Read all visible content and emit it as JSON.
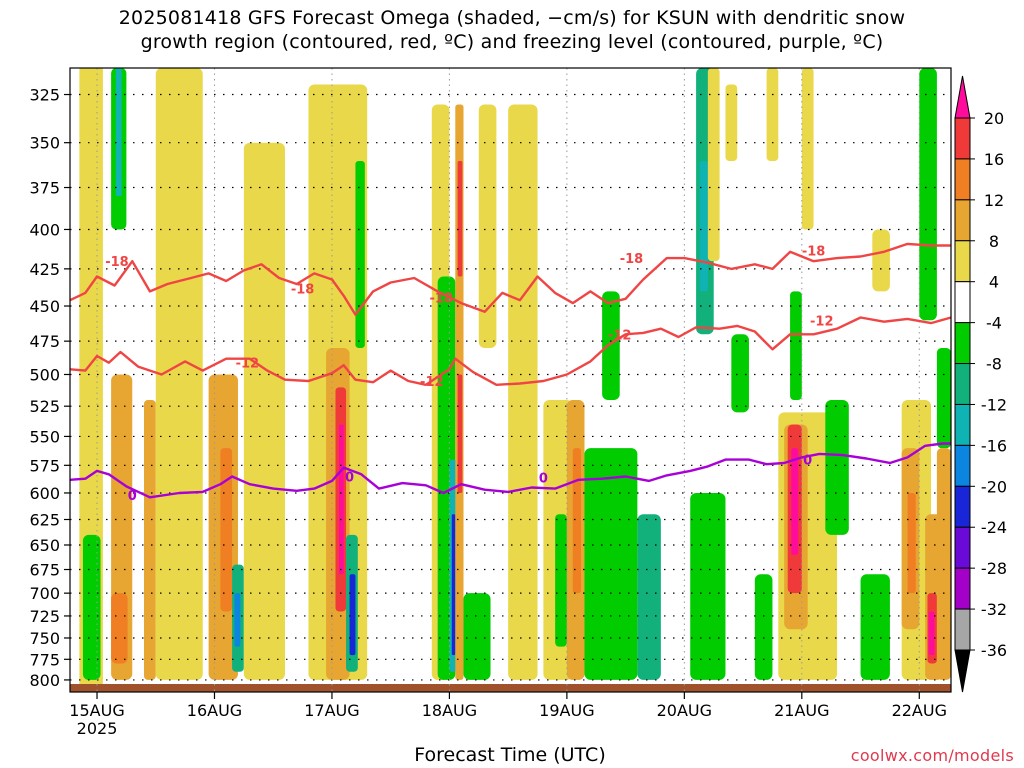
{
  "title_line1": "2025081418 GFS Forecast Omega (shaded, −cm/s) for KSUN with dendritic snow",
  "title_line2": "growth region (contoured, red, ºC) and freezing level (contoured, purple, ºC)",
  "xlabel": "Forecast Time (UTC)",
  "credit": "coolwx.com/models",
  "chart_data": {
    "type": "heatmap",
    "x_ticks": [
      {
        "label": "15AUG",
        "sub": "2025",
        "day": 0
      },
      {
        "label": "16AUG",
        "sub": "",
        "day": 1
      },
      {
        "label": "17AUG",
        "sub": "",
        "day": 2
      },
      {
        "label": "18AUG",
        "sub": "",
        "day": 3
      },
      {
        "label": "19AUG",
        "sub": "",
        "day": 4
      },
      {
        "label": "20AUG",
        "sub": "",
        "day": 5
      },
      {
        "label": "21AUG",
        "sub": "",
        "day": 6
      },
      {
        "label": "22AUG",
        "sub": "",
        "day": 7
      }
    ],
    "x_range_days": [
      -0.23,
      7.27
    ],
    "y_ticks": [
      325,
      350,
      375,
      400,
      425,
      450,
      475,
      500,
      525,
      550,
      575,
      600,
      625,
      650,
      675,
      700,
      725,
      750,
      775,
      800
    ],
    "y_range": [
      312,
      815
    ],
    "y_scale": "log",
    "grid": true,
    "colorbar": {
      "levels": [
        20,
        16,
        12,
        8,
        4,
        -4,
        -8,
        -12,
        -16,
        -20,
        -24,
        -28,
        -32,
        -36
      ],
      "colors": [
        "#ff0c9c",
        "#f03a3a",
        "#ef7f22",
        "#e6a631",
        "#e9d84a",
        "#ffffff",
        "#00cc00",
        "#12b07a",
        "#10b3b3",
        "#0b85e0",
        "#1826d8",
        "#6a0ad6",
        "#a300c8",
        "#a6a6a6",
        "#000000"
      ]
    },
    "contour_labels": {
      "dgz_red": [
        "-18",
        "-12"
      ],
      "freezing_purple": [
        "0"
      ]
    },
    "series": [
      {
        "name": "-18",
        "color": "#f04545",
        "points": [
          [
            -0.23,
            446
          ],
          [
            -0.1,
            441
          ],
          [
            0.0,
            430
          ],
          [
            0.15,
            436
          ],
          [
            0.3,
            420
          ],
          [
            0.45,
            440
          ],
          [
            0.6,
            435
          ],
          [
            0.8,
            431
          ],
          [
            0.95,
            428
          ],
          [
            1.1,
            433
          ],
          [
            1.25,
            426
          ],
          [
            1.4,
            422
          ],
          [
            1.55,
            431
          ],
          [
            1.7,
            435
          ],
          [
            1.85,
            428
          ],
          [
            2.0,
            432
          ],
          [
            2.1,
            443
          ],
          [
            2.2,
            456
          ],
          [
            2.35,
            440
          ],
          [
            2.5,
            434
          ],
          [
            2.7,
            431
          ],
          [
            2.9,
            440
          ],
          [
            3.1,
            448
          ],
          [
            3.3,
            454
          ],
          [
            3.45,
            441
          ],
          [
            3.6,
            446
          ],
          [
            3.75,
            430
          ],
          [
            3.9,
            441
          ],
          [
            4.05,
            448
          ],
          [
            4.2,
            440
          ],
          [
            4.35,
            448
          ],
          [
            4.5,
            445
          ],
          [
            4.65,
            432
          ],
          [
            4.85,
            418
          ],
          [
            5.0,
            418
          ],
          [
            5.2,
            421
          ],
          [
            5.4,
            425
          ],
          [
            5.6,
            422
          ],
          [
            5.75,
            425
          ],
          [
            5.9,
            414
          ],
          [
            6.1,
            420
          ],
          [
            6.3,
            418
          ],
          [
            6.5,
            417
          ],
          [
            6.7,
            414
          ],
          [
            6.9,
            409
          ],
          [
            7.1,
            410
          ],
          [
            7.27,
            410
          ]
        ]
      },
      {
        "name": "-12",
        "color": "#f04545",
        "points": [
          [
            -0.23,
            496
          ],
          [
            -0.1,
            497
          ],
          [
            0.0,
            486
          ],
          [
            0.1,
            491
          ],
          [
            0.2,
            483
          ],
          [
            0.35,
            494
          ],
          [
            0.55,
            500
          ],
          [
            0.75,
            490
          ],
          [
            0.9,
            497
          ],
          [
            1.1,
            488
          ],
          [
            1.3,
            488
          ],
          [
            1.45,
            497
          ],
          [
            1.6,
            504
          ],
          [
            1.8,
            505
          ],
          [
            2.0,
            499
          ],
          [
            2.1,
            493
          ],
          [
            2.2,
            504
          ],
          [
            2.35,
            506
          ],
          [
            2.5,
            497
          ],
          [
            2.65,
            505
          ],
          [
            2.8,
            508
          ],
          [
            3.0,
            496
          ],
          [
            3.05,
            488
          ],
          [
            3.2,
            498
          ],
          [
            3.4,
            508
          ],
          [
            3.6,
            507
          ],
          [
            3.8,
            505
          ],
          [
            4.0,
            500
          ],
          [
            4.2,
            490
          ],
          [
            4.35,
            478
          ],
          [
            4.5,
            470
          ],
          [
            4.65,
            469
          ],
          [
            4.8,
            466
          ],
          [
            4.95,
            472
          ],
          [
            5.1,
            465
          ],
          [
            5.3,
            466
          ],
          [
            5.45,
            464
          ],
          [
            5.6,
            468
          ],
          [
            5.75,
            481
          ],
          [
            5.9,
            470
          ],
          [
            6.1,
            470
          ],
          [
            6.3,
            466
          ],
          [
            6.5,
            458
          ],
          [
            6.7,
            461
          ],
          [
            6.9,
            459
          ],
          [
            7.1,
            462
          ],
          [
            7.27,
            458
          ]
        ]
      },
      {
        "name": "0",
        "color": "#a800d8",
        "points": [
          [
            -0.23,
            588
          ],
          [
            -0.1,
            587
          ],
          [
            0.0,
            580
          ],
          [
            0.1,
            583
          ],
          [
            0.25,
            594
          ],
          [
            0.45,
            604
          ],
          [
            0.7,
            600
          ],
          [
            0.9,
            599
          ],
          [
            1.05,
            592
          ],
          [
            1.15,
            585
          ],
          [
            1.3,
            592
          ],
          [
            1.5,
            596
          ],
          [
            1.7,
            598
          ],
          [
            1.85,
            596
          ],
          [
            2.0,
            589
          ],
          [
            2.1,
            577
          ],
          [
            2.25,
            583
          ],
          [
            2.4,
            596
          ],
          [
            2.6,
            591
          ],
          [
            2.8,
            593
          ],
          [
            2.95,
            600
          ],
          [
            3.1,
            592
          ],
          [
            3.3,
            597
          ],
          [
            3.5,
            599
          ],
          [
            3.7,
            595
          ],
          [
            3.9,
            596
          ],
          [
            4.1,
            588
          ],
          [
            4.3,
            587
          ],
          [
            4.5,
            585
          ],
          [
            4.7,
            589
          ],
          [
            4.85,
            584
          ],
          [
            5.05,
            580
          ],
          [
            5.2,
            576
          ],
          [
            5.35,
            570
          ],
          [
            5.55,
            570
          ],
          [
            5.7,
            574
          ],
          [
            5.85,
            573
          ],
          [
            6.0,
            568
          ],
          [
            6.15,
            565
          ],
          [
            6.35,
            566
          ],
          [
            6.55,
            569
          ],
          [
            6.75,
            573
          ],
          [
            6.9,
            568
          ],
          [
            7.05,
            558
          ],
          [
            7.2,
            556
          ],
          [
            7.27,
            556
          ]
        ]
      }
    ],
    "contour_label_positions": [
      {
        "text": "-18",
        "day": 0.17,
        "p": 420
      },
      {
        "text": "-18",
        "day": 1.75,
        "p": 438
      },
      {
        "text": "-18",
        "day": 2.93,
        "p": 444
      },
      {
        "text": "-18",
        "day": 4.55,
        "p": 418
      },
      {
        "text": "-18",
        "day": 6.1,
        "p": 413
      },
      {
        "text": "-12",
        "day": 1.28,
        "p": 491
      },
      {
        "text": "-12",
        "day": 2.85,
        "p": 505
      },
      {
        "text": "-12",
        "day": 4.45,
        "p": 470
      },
      {
        "text": "-12",
        "day": 6.17,
        "p": 460
      },
      {
        "text": "0",
        "day": 0.3,
        "p": 602
      },
      {
        "text": "0",
        "day": 2.15,
        "p": 585
      },
      {
        "text": "0",
        "day": 3.8,
        "p": 586
      },
      {
        "text": "0",
        "day": 6.05,
        "p": 570
      }
    ],
    "omega_cells": [
      {
        "d0": -0.15,
        "d1": 0.05,
        "p0": 310,
        "p1": 815,
        "lvl": 4
      },
      {
        "d0": -0.12,
        "d1": 0.03,
        "p0": 640,
        "p1": 800,
        "lvl": -8
      },
      {
        "d0": 0.12,
        "d1": 0.3,
        "p0": 500,
        "p1": 800,
        "lvl": 8
      },
      {
        "d0": 0.12,
        "d1": 0.26,
        "p0": 700,
        "p1": 780,
        "lvl": 12
      },
      {
        "d0": 0.12,
        "d1": 0.25,
        "p0": 312,
        "p1": 400,
        "lvl": -8
      },
      {
        "d0": 0.16,
        "d1": 0.21,
        "p0": 312,
        "p1": 380,
        "lvl": -16
      },
      {
        "d0": 0.4,
        "d1": 0.5,
        "p0": 520,
        "p1": 800,
        "lvl": 8
      },
      {
        "d0": 0.5,
        "d1": 0.9,
        "p0": 312,
        "p1": 800,
        "lvl": 4
      },
      {
        "d0": 0.95,
        "d1": 1.2,
        "p0": 500,
        "p1": 800,
        "lvl": 8
      },
      {
        "d0": 1.05,
        "d1": 1.15,
        "p0": 560,
        "p1": 720,
        "lvl": 12
      },
      {
        "d0": 1.15,
        "d1": 1.25,
        "p0": 670,
        "p1": 790,
        "lvl": -12
      },
      {
        "d0": 1.17,
        "d1": 1.22,
        "p0": 700,
        "p1": 760,
        "lvl": -20
      },
      {
        "d0": 1.25,
        "d1": 1.6,
        "p0": 350,
        "p1": 800,
        "lvl": 4
      },
      {
        "d0": 1.8,
        "d1": 2.3,
        "p0": 320,
        "p1": 800,
        "lvl": 4
      },
      {
        "d0": 1.95,
        "d1": 2.15,
        "p0": 480,
        "p1": 800,
        "lvl": 8
      },
      {
        "d0": 2.03,
        "d1": 2.12,
        "p0": 510,
        "p1": 720,
        "lvl": 16
      },
      {
        "d0": 2.06,
        "d1": 2.1,
        "p0": 540,
        "p1": 680,
        "lvl": 20
      },
      {
        "d0": 2.12,
        "d1": 2.22,
        "p0": 640,
        "p1": 790,
        "lvl": -12
      },
      {
        "d0": 2.15,
        "d1": 2.2,
        "p0": 680,
        "p1": 770,
        "lvl": -24
      },
      {
        "d0": 2.2,
        "d1": 2.28,
        "p0": 360,
        "p1": 480,
        "lvl": -8
      },
      {
        "d0": 2.85,
        "d1": 3.0,
        "p0": 330,
        "p1": 800,
        "lvl": 4
      },
      {
        "d0": 2.9,
        "d1": 3.05,
        "p0": 430,
        "p1": 800,
        "lvl": -8
      },
      {
        "d0": 3.0,
        "d1": 3.06,
        "p0": 570,
        "p1": 790,
        "lvl": -16
      },
      {
        "d0": 3.02,
        "d1": 3.05,
        "p0": 620,
        "p1": 770,
        "lvl": -24
      },
      {
        "d0": 3.05,
        "d1": 3.12,
        "p0": 330,
        "p1": 800,
        "lvl": 8
      },
      {
        "d0": 3.07,
        "d1": 3.11,
        "p0": 360,
        "p1": 430,
        "lvl": 16
      },
      {
        "d0": 3.07,
        "d1": 3.11,
        "p0": 500,
        "p1": 600,
        "lvl": 16
      },
      {
        "d0": 3.12,
        "d1": 3.35,
        "p0": 700,
        "p1": 800,
        "lvl": -8
      },
      {
        "d0": 3.25,
        "d1": 3.4,
        "p0": 330,
        "p1": 480,
        "lvl": 4
      },
      {
        "d0": 3.5,
        "d1": 3.75,
        "p0": 330,
        "p1": 800,
        "lvl": 4
      },
      {
        "d0": 3.8,
        "d1": 4.05,
        "p0": 520,
        "p1": 800,
        "lvl": 4
      },
      {
        "d0": 3.9,
        "d1": 4.0,
        "p0": 620,
        "p1": 760,
        "lvl": -8
      },
      {
        "d0": 4.0,
        "d1": 4.15,
        "p0": 520,
        "p1": 800,
        "lvl": 8
      },
      {
        "d0": 4.05,
        "d1": 4.12,
        "p0": 560,
        "p1": 700,
        "lvl": 12
      },
      {
        "d0": 4.15,
        "d1": 4.6,
        "p0": 560,
        "p1": 800,
        "lvl": -8
      },
      {
        "d0": 4.3,
        "d1": 4.45,
        "p0": 440,
        "p1": 520,
        "lvl": -8
      },
      {
        "d0": 4.6,
        "d1": 4.8,
        "p0": 620,
        "p1": 800,
        "lvl": -12
      },
      {
        "d0": 5.1,
        "d1": 5.25,
        "p0": 312,
        "p1": 470,
        "lvl": -12
      },
      {
        "d0": 5.13,
        "d1": 5.2,
        "p0": 360,
        "p1": 440,
        "lvl": -16
      },
      {
        "d0": 5.05,
        "d1": 5.35,
        "p0": 600,
        "p1": 800,
        "lvl": -8
      },
      {
        "d0": 5.2,
        "d1": 5.3,
        "p0": 312,
        "p1": 420,
        "lvl": 4
      },
      {
        "d0": 5.35,
        "d1": 5.45,
        "p0": 320,
        "p1": 360,
        "lvl": 4
      },
      {
        "d0": 5.4,
        "d1": 5.55,
        "p0": 470,
        "p1": 530,
        "lvl": -8
      },
      {
        "d0": 5.6,
        "d1": 5.75,
        "p0": 680,
        "p1": 800,
        "lvl": -8
      },
      {
        "d0": 5.7,
        "d1": 5.8,
        "p0": 312,
        "p1": 360,
        "lvl": 4
      },
      {
        "d0": 5.8,
        "d1": 6.3,
        "p0": 530,
        "p1": 800,
        "lvl": 4
      },
      {
        "d0": 5.85,
        "d1": 6.05,
        "p0": 540,
        "p1": 740,
        "lvl": 8
      },
      {
        "d0": 5.88,
        "d1": 6.0,
        "p0": 540,
        "p1": 700,
        "lvl": 16
      },
      {
        "d0": 5.91,
        "d1": 5.97,
        "p0": 560,
        "p1": 660,
        "lvl": 20
      },
      {
        "d0": 5.9,
        "d1": 6.0,
        "p0": 440,
        "p1": 520,
        "lvl": -8
      },
      {
        "d0": 6.0,
        "d1": 6.1,
        "p0": 312,
        "p1": 400,
        "lvl": 4
      },
      {
        "d0": 6.2,
        "d1": 6.4,
        "p0": 520,
        "p1": 640,
        "lvl": -8
      },
      {
        "d0": 6.5,
        "d1": 6.75,
        "p0": 680,
        "p1": 800,
        "lvl": -8
      },
      {
        "d0": 6.6,
        "d1": 6.75,
        "p0": 400,
        "p1": 440,
        "lvl": 4
      },
      {
        "d0": 6.85,
        "d1": 7.1,
        "p0": 520,
        "p1": 800,
        "lvl": 4
      },
      {
        "d0": 6.85,
        "d1": 7.0,
        "p0": 560,
        "p1": 740,
        "lvl": 8
      },
      {
        "d0": 6.9,
        "d1": 6.97,
        "p0": 600,
        "p1": 700,
        "lvl": 12
      },
      {
        "d0": 7.0,
        "d1": 7.15,
        "p0": 312,
        "p1": 460,
        "lvl": -8
      },
      {
        "d0": 7.05,
        "d1": 7.2,
        "p0": 620,
        "p1": 800,
        "lvl": 8
      },
      {
        "d0": 7.07,
        "d1": 7.15,
        "p0": 700,
        "p1": 780,
        "lvl": 16
      },
      {
        "d0": 7.08,
        "d1": 7.13,
        "p0": 720,
        "p1": 770,
        "lvl": 20
      },
      {
        "d0": 7.15,
        "d1": 7.27,
        "p0": 480,
        "p1": 560,
        "lvl": -8
      },
      {
        "d0": 7.15,
        "d1": 7.27,
        "p0": 560,
        "p1": 800,
        "lvl": 8
      }
    ]
  }
}
